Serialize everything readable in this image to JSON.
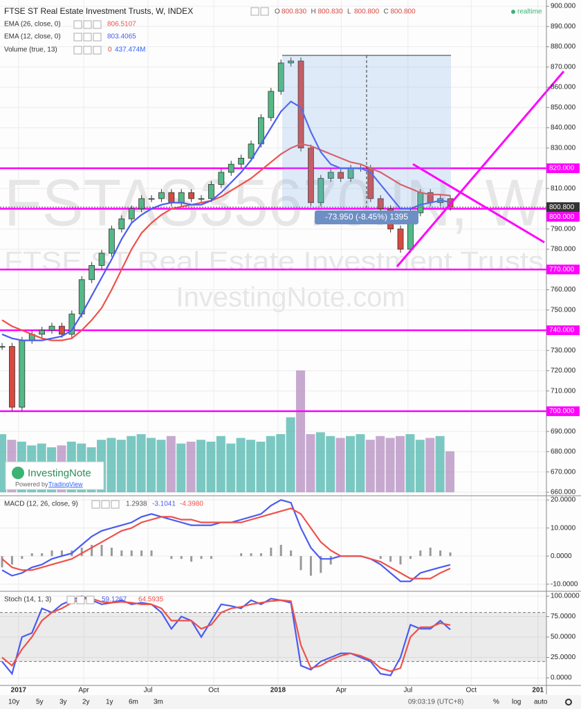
{
  "header": {
    "title": "FTSE ST Real Estate Investment Trusts, W, INDEX",
    "ohlc": [
      {
        "key": "O",
        "value": "800.830"
      },
      {
        "key": "H",
        "value": "800.830"
      },
      {
        "key": "L",
        "value": "800.800"
      },
      {
        "key": "C",
        "value": "800.800"
      }
    ],
    "status": "realtime"
  },
  "watermark": {
    "symbol": "FSTAS35670.IN, W",
    "name": "FTSE ST Real Estate Investment Trusts",
    "site": "InvestingNote.com"
  },
  "branding": {
    "logo": "InvestingNote",
    "powered": "Powered by",
    "powered_link": "TradingView"
  },
  "measure": "-73.950 (-8.45%) 1395",
  "chart_data": [
    {
      "type": "candlestick",
      "x": [
        0,
        2,
        4,
        6,
        8,
        10,
        12,
        14,
        16,
        18,
        20,
        22,
        24,
        26,
        28,
        30,
        32,
        34,
        36,
        38,
        40,
        42,
        44,
        46,
        48,
        50,
        52,
        54,
        56,
        58,
        60,
        62,
        64,
        66,
        68,
        70,
        72,
        74,
        76,
        78,
        80,
        82,
        84,
        86,
        88,
        90
      ],
      "xlim": [
        -0.42,
        109.3
      ],
      "xticks": [
        {
          "value": 3.3,
          "label": "2017"
        },
        {
          "value": 16.4,
          "label": "Apr"
        },
        {
          "value": 29.3,
          "label": "Jul"
        },
        {
          "value": 42.5,
          "label": "Oct"
        },
        {
          "value": 55.4,
          "label": "2018"
        },
        {
          "value": 68.1,
          "label": "Apr"
        },
        {
          "value": 81.5,
          "label": "Jul"
        },
        {
          "value": 94.2,
          "label": "Oct"
        },
        {
          "value": 107.6,
          "label": "201"
        }
      ],
      "close": [
        732,
        702,
        735,
        738,
        740,
        742,
        738,
        748,
        765,
        772,
        778,
        790,
        795,
        800,
        805,
        805,
        808,
        803,
        808,
        805,
        805,
        812,
        818,
        822,
        825,
        832,
        845,
        858,
        872,
        873,
        830,
        803,
        815,
        818,
        815,
        820,
        820,
        805,
        800,
        790,
        780,
        798,
        808,
        803,
        805,
        800.8
      ],
      "last_label": "800.800",
      "up_color": "#53b987",
      "down_color": "#d84a3f",
      "series": [
        {
          "name": "EMA (26, close, 0)",
          "color": "#f0504a",
          "last_label": "806.5107",
          "values": [
            745,
            742,
            740,
            738,
            736,
            735,
            735,
            736,
            740,
            745,
            751,
            760,
            770,
            780,
            788,
            793,
            797,
            800,
            801,
            802,
            803,
            804,
            806,
            809,
            812,
            815,
            819,
            823,
            827,
            830,
            832,
            831,
            829,
            827,
            825,
            823,
            822,
            820,
            818,
            815,
            812,
            810,
            808,
            807,
            807,
            806.5
          ]
        },
        {
          "name": "EMA (12, close, 0)",
          "color": "#4a5cf0",
          "last_label": "803.4065",
          "values": [
            738,
            736,
            735,
            735,
            735,
            736,
            737,
            740,
            748,
            757,
            766,
            775,
            785,
            793,
            797,
            800,
            802,
            803,
            803,
            802,
            802,
            804,
            808,
            813,
            818,
            824,
            832,
            840,
            848,
            853,
            850,
            838,
            828,
            822,
            820,
            820,
            820,
            818,
            812,
            806,
            800,
            800,
            802,
            803,
            804,
            803.4
          ]
        }
      ],
      "volume": {
        "name": "Volume (true, 13)",
        "prefix": "0",
        "last_label": "437.474M",
        "values": [
          620,
          560,
          540,
          500,
          520,
          480,
          500,
          540,
          520,
          480,
          560,
          580,
          560,
          600,
          620,
          580,
          560,
          600,
          520,
          540,
          560,
          540,
          600,
          520,
          580,
          560,
          540,
          600,
          620,
          800,
          1300,
          620,
          640,
          600,
          580,
          600,
          620,
          560,
          600,
          580,
          600,
          620,
          560,
          580,
          600,
          437.474
        ]
      },
      "ylim": [
        658.6,
        903.1
      ],
      "yticks": [
        {
          "value": 900,
          "label": "900.000"
        },
        {
          "value": 890,
          "label": "890.000"
        },
        {
          "value": 880,
          "label": "880.000"
        },
        {
          "value": 870,
          "label": "870.000"
        },
        {
          "value": 860,
          "label": "860.000"
        },
        {
          "value": 850,
          "label": "850.000"
        },
        {
          "value": 840,
          "label": "840.000"
        },
        {
          "value": 830,
          "label": "830.000"
        },
        {
          "value": 810,
          "label": "810.000"
        },
        {
          "value": 790,
          "label": "790.000"
        },
        {
          "value": 780,
          "label": "780.000"
        },
        {
          "value": 760,
          "label": "760.000"
        },
        {
          "value": 750,
          "label": "750.000"
        },
        {
          "value": 730,
          "label": "730.000"
        },
        {
          "value": 720,
          "label": "720.000"
        },
        {
          "value": 710,
          "label": "710.000"
        },
        {
          "value": 690,
          "label": "690.000"
        },
        {
          "value": 680,
          "label": "680.000"
        },
        {
          "value": 670,
          "label": "670.000"
        },
        {
          "value": 660,
          "label": "660.000"
        }
      ],
      "hlines": [
        {
          "value": 820,
          "label": "820.000"
        },
        {
          "value": 800,
          "label": "800.000"
        },
        {
          "value": 770,
          "label": "770.000"
        },
        {
          "value": 740,
          "label": "740.000"
        },
        {
          "value": 700,
          "label": "700.000"
        }
      ],
      "hline_color": "#ff00ff",
      "grid": true
    },
    {
      "type": "macd",
      "title": "MACD (12, 26, close, 9)",
      "series": [
        {
          "name": "MACD",
          "color": "#4a5cf0",
          "last_label": "-3.1041",
          "values": [
            -5,
            -7,
            -6,
            -4,
            -3,
            -1,
            0,
            1,
            4,
            7,
            9,
            10,
            11,
            12,
            14,
            15,
            14,
            13,
            12,
            11,
            11,
            11,
            12,
            12,
            13,
            14,
            15,
            18,
            20,
            19,
            10,
            3,
            -1,
            -1,
            0,
            0,
            0,
            -1,
            -3,
            -6,
            -9,
            -9,
            -6,
            -5,
            -4,
            -3.1
          ]
        },
        {
          "name": "Signal",
          "color": "#f0504a",
          "last_label": "-4.3980",
          "values": [
            -1,
            -4,
            -5,
            -5,
            -4,
            -3,
            -2,
            -1,
            1,
            3,
            5,
            7,
            9,
            10,
            12,
            13,
            14,
            14,
            13,
            13,
            12,
            12,
            12,
            12,
            12,
            13,
            14,
            15,
            16,
            17,
            15,
            10,
            5,
            2,
            0,
            0,
            0,
            -1,
            -2,
            -4,
            -6,
            -8,
            -8,
            -8,
            -6,
            -4.4
          ]
        }
      ],
      "histogram": {
        "color": "#999999",
        "last_label": "1.2938",
        "values": [
          -4,
          -3,
          -1,
          1,
          1,
          2,
          2,
          2,
          3,
          4,
          4,
          3,
          2,
          2,
          2,
          2,
          0,
          -1,
          -1,
          -2,
          -1,
          -1,
          0,
          0,
          1,
          1,
          1,
          3,
          4,
          2,
          -5,
          -7,
          -6,
          -3,
          0,
          0,
          0,
          0,
          -1,
          -2,
          -3,
          -1,
          2,
          3,
          2,
          1.3
        ]
      },
      "ylim": [
        -12.3,
        21.5
      ],
      "yticks": [
        {
          "value": 20,
          "label": "20.0000"
        },
        {
          "value": 10,
          "label": "10.0000"
        },
        {
          "value": 0,
          "label": "0.0000"
        },
        {
          "value": -10,
          "label": "-10.0000"
        }
      ],
      "grid": true
    },
    {
      "type": "stoch",
      "title": "Stoch (14, 1, 3)",
      "series": [
        {
          "name": "%K",
          "color": "#4a5cf0",
          "last_label": "59.1267",
          "values": [
            20,
            5,
            50,
            55,
            85,
            80,
            90,
            95,
            100,
            95,
            90,
            92,
            95,
            90,
            92,
            90,
            80,
            60,
            75,
            70,
            50,
            70,
            90,
            88,
            85,
            95,
            90,
            97,
            95,
            92,
            15,
            10,
            20,
            25,
            30,
            30,
            25,
            20,
            5,
            3,
            25,
            65,
            60,
            60,
            70,
            59.1
          ]
        },
        {
          "name": "%D",
          "color": "#f0504a",
          "last_label": "64.5935",
          "values": [
            25,
            15,
            35,
            50,
            70,
            80,
            85,
            92,
            97,
            97,
            93,
            92,
            93,
            92,
            90,
            90,
            85,
            70,
            70,
            70,
            60,
            65,
            80,
            85,
            87,
            90,
            92,
            94,
            95,
            94,
            40,
            12,
            15,
            22,
            27,
            30,
            27,
            22,
            12,
            8,
            12,
            50,
            62,
            62,
            67,
            64.6
          ]
        }
      ],
      "bands": [
        20,
        80
      ],
      "ylim": [
        -9.3,
        105.1
      ],
      "yticks": [
        {
          "value": 100,
          "label": "100.0000"
        },
        {
          "value": 75,
          "label": "75.0000"
        },
        {
          "value": 50,
          "label": "50.0000"
        },
        {
          "value": 25,
          "label": "25.0000"
        },
        {
          "value": 0,
          "label": "0.0000"
        }
      ],
      "grid": true
    }
  ],
  "toolbar": {
    "ranges": [
      "10y",
      "5y",
      "3y",
      "2y",
      "1y",
      "6m",
      "3m"
    ],
    "time": "09:03:19 (UTC+8)",
    "percent": "%",
    "log": "log",
    "auto": "auto"
  }
}
